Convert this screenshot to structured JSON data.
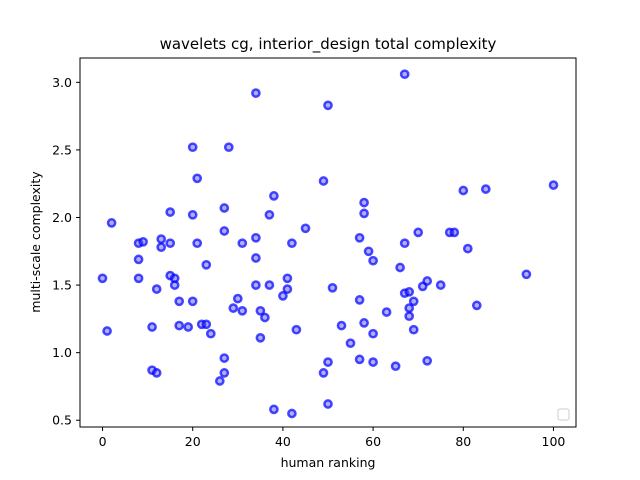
{
  "chart_data": {
    "type": "scatter",
    "title": "wavelets cg, interior_design total complexity",
    "xlabel": "human ranking",
    "ylabel": "multi-scale complexity",
    "xlim": [
      -5,
      105
    ],
    "ylim": [
      0.45,
      3.18
    ],
    "xticks": [
      0,
      20,
      40,
      60,
      80,
      100
    ],
    "yticks": [
      0.5,
      1.0,
      1.5,
      2.0,
      2.5,
      3.0
    ],
    "xtick_labels": [
      "0",
      "20",
      "40",
      "60",
      "80",
      "100"
    ],
    "ytick_labels": [
      "0.5",
      "1.0",
      "1.5",
      "2.0",
      "2.5",
      "3.0"
    ],
    "grid": false,
    "legend": "lower-right",
    "series_color": "#0000ff",
    "points": [
      [
        0,
        1.55
      ],
      [
        1,
        1.16
      ],
      [
        2,
        1.96
      ],
      [
        8,
        1.81
      ],
      [
        8,
        1.69
      ],
      [
        8,
        1.55
      ],
      [
        9,
        1.82
      ],
      [
        11,
        1.19
      ],
      [
        11,
        0.87
      ],
      [
        12,
        1.47
      ],
      [
        12,
        0.85
      ],
      [
        13,
        1.84
      ],
      [
        13,
        1.78
      ],
      [
        15,
        2.04
      ],
      [
        15,
        1.81
      ],
      [
        15,
        1.57
      ],
      [
        16,
        1.55
      ],
      [
        16,
        1.5
      ],
      [
        17,
        1.38
      ],
      [
        17,
        1.2
      ],
      [
        19,
        1.19
      ],
      [
        20,
        2.52
      ],
      [
        20,
        2.02
      ],
      [
        20,
        1.38
      ],
      [
        21,
        2.29
      ],
      [
        21,
        1.81
      ],
      [
        22,
        1.21
      ],
      [
        23,
        1.65
      ],
      [
        23,
        1.21
      ],
      [
        24,
        1.14
      ],
      [
        26,
        0.79
      ],
      [
        27,
        2.07
      ],
      [
        27,
        1.9
      ],
      [
        27,
        0.96
      ],
      [
        27,
        0.85
      ],
      [
        28,
        2.52
      ],
      [
        29,
        1.33
      ],
      [
        30,
        1.4
      ],
      [
        31,
        1.81
      ],
      [
        31,
        1.31
      ],
      [
        34,
        2.92
      ],
      [
        34,
        1.85
      ],
      [
        34,
        1.7
      ],
      [
        34,
        1.5
      ],
      [
        35,
        1.31
      ],
      [
        35,
        1.11
      ],
      [
        36,
        1.26
      ],
      [
        37,
        2.02
      ],
      [
        37,
        1.5
      ],
      [
        38,
        2.16
      ],
      [
        38,
        0.58
      ],
      [
        40,
        1.42
      ],
      [
        41,
        1.55
      ],
      [
        41,
        1.47
      ],
      [
        42,
        1.81
      ],
      [
        42,
        0.55
      ],
      [
        43,
        1.17
      ],
      [
        45,
        1.92
      ],
      [
        49,
        2.27
      ],
      [
        49,
        0.85
      ],
      [
        50,
        2.83
      ],
      [
        50,
        0.93
      ],
      [
        50,
        0.62
      ],
      [
        51,
        1.48
      ],
      [
        53,
        1.2
      ],
      [
        55,
        1.07
      ],
      [
        57,
        1.85
      ],
      [
        57,
        1.39
      ],
      [
        57,
        0.95
      ],
      [
        58,
        2.11
      ],
      [
        58,
        2.03
      ],
      [
        58,
        1.22
      ],
      [
        59,
        1.75
      ],
      [
        60,
        1.68
      ],
      [
        60,
        1.14
      ],
      [
        60,
        0.93
      ],
      [
        63,
        1.3
      ],
      [
        65,
        0.9
      ],
      [
        66,
        1.63
      ],
      [
        67,
        3.06
      ],
      [
        67,
        1.81
      ],
      [
        67,
        1.44
      ],
      [
        68,
        1.45
      ],
      [
        68,
        1.33
      ],
      [
        68,
        1.27
      ],
      [
        69,
        1.38
      ],
      [
        69,
        1.17
      ],
      [
        70,
        1.89
      ],
      [
        71,
        1.49
      ],
      [
        72,
        1.53
      ],
      [
        72,
        0.94
      ],
      [
        75,
        1.5
      ],
      [
        77,
        1.89
      ],
      [
        78,
        1.89
      ],
      [
        80,
        2.2
      ],
      [
        81,
        1.77
      ],
      [
        83,
        1.35
      ],
      [
        85,
        2.21
      ],
      [
        94,
        1.58
      ],
      [
        100,
        2.24
      ]
    ]
  }
}
